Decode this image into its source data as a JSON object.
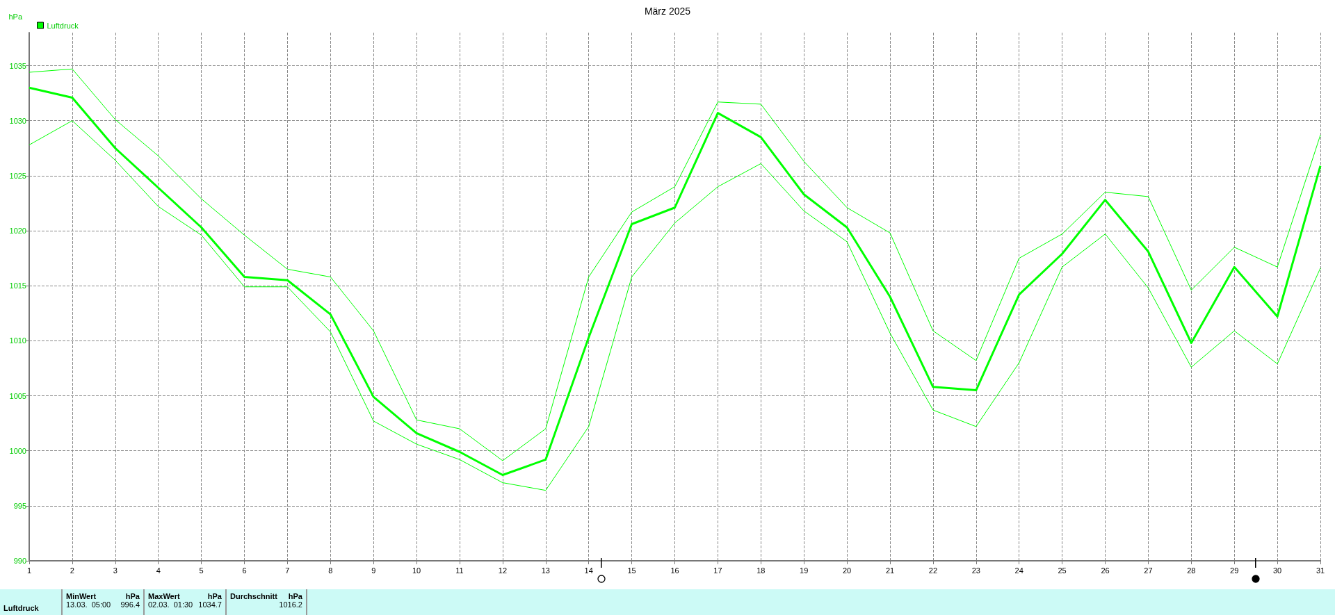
{
  "chart_data": {
    "type": "line",
    "title": "März 2025",
    "ylabel": "hPa",
    "x": [
      1,
      2,
      3,
      4,
      5,
      6,
      7,
      8,
      9,
      10,
      11,
      12,
      13,
      14,
      15,
      16,
      17,
      18,
      19,
      20,
      21,
      22,
      23,
      24,
      25,
      26,
      27,
      28,
      29,
      30,
      31
    ],
    "series": [
      {
        "name": "Luftdruck",
        "color": "#00ff00",
        "values": [
          1033.0,
          1032.1,
          1027.5,
          1023.9,
          1020.3,
          1015.8,
          1015.5,
          1012.4,
          1004.9,
          1001.6,
          999.9,
          997.8,
          999.2,
          1010.3,
          1020.6,
          1022.1,
          1030.7,
          1028.5,
          1023.3,
          1020.3,
          1014.0,
          1005.8,
          1005.5,
          1014.2,
          1017.9,
          1022.8,
          1018.1,
          1009.8,
          1016.7,
          1012.2,
          1025.9
        ]
      },
      {
        "color": "#00ff00",
        "values": [
          1034.4,
          1034.7,
          1030.1,
          1026.8,
          1022.9,
          1019.6,
          1016.5,
          1015.8,
          1010.9,
          1002.8,
          1002.0,
          999.1,
          1002.0,
          1015.8,
          1021.7,
          1024.0,
          1031.7,
          1031.5,
          1026.3,
          1022.1,
          1019.8,
          1010.9,
          1008.2,
          1017.5,
          1019.7,
          1023.5,
          1023.1,
          1014.6,
          1018.5,
          1016.7,
          1028.7
        ]
      },
      {
        "color": "#00ff00",
        "values": [
          1027.8,
          1030.0,
          1026.4,
          1022.2,
          1019.6,
          1014.9,
          1014.9,
          1010.8,
          1002.7,
          1000.6,
          999.2,
          997.1,
          996.4,
          1002.2,
          1015.8,
          1020.7,
          1024.0,
          1026.1,
          1021.8,
          1019.0,
          1010.7,
          1003.7,
          1002.2,
          1008.0,
          1016.7,
          1019.7,
          1014.8,
          1007.6,
          1010.9,
          1007.9,
          1016.6
        ]
      }
    ],
    "xlim": [
      1,
      31
    ],
    "xticks": [
      1,
      2,
      3,
      4,
      5,
      6,
      7,
      8,
      9,
      10,
      11,
      12,
      13,
      14,
      15,
      16,
      17,
      18,
      19,
      20,
      21,
      22,
      23,
      24,
      25,
      26,
      27,
      28,
      29,
      30,
      31
    ],
    "ylim": [
      990,
      1038
    ],
    "yticks": [
      990,
      995,
      1000,
      1005,
      1010,
      1015,
      1020,
      1025,
      1030,
      1035
    ],
    "grid": true,
    "legend": "top left",
    "marker": "none",
    "line_style": "solid",
    "annotations": [
      "Luftdruck",
      "MinWert",
      "hPa",
      "13.03.  05:00",
      "996.4",
      "MaxWert",
      "hPa",
      "02.03.  01:30",
      "1034.7",
      "Durchschnitt",
      "hPa",
      "1016.2"
    ]
  }
}
